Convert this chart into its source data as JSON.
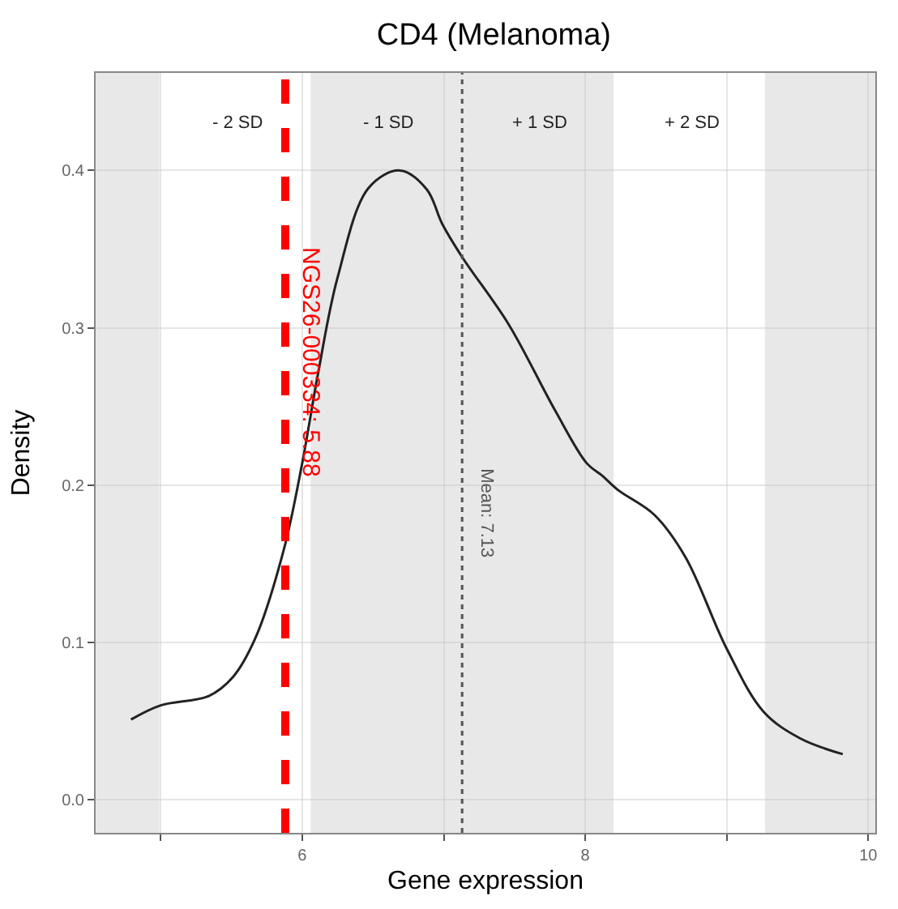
{
  "chart_data": {
    "type": "line",
    "title": "CD4 (Melanoma)",
    "xlabel": "Gene expression",
    "ylabel": "Density",
    "x": [
      4.79,
      5.0,
      5.34,
      5.51,
      5.67,
      5.87,
      6.0,
      6.11,
      6.25,
      6.47,
      6.69,
      6.88,
      6.99,
      7.13,
      7.46,
      7.79,
      8.01,
      8.12,
      8.23,
      8.49,
      8.71,
      9.0,
      9.26,
      9.52,
      9.82
    ],
    "series": [
      {
        "color": "#222222",
        "values": [
          0.051,
          0.06,
          0.066,
          0.078,
          0.103,
          0.159,
          0.214,
          0.27,
          0.332,
          0.389,
          0.4,
          0.388,
          0.366,
          0.345,
          0.302,
          0.247,
          0.214,
          0.206,
          0.197,
          0.181,
          0.154,
          0.096,
          0.056,
          0.039,
          0.029
        ]
      }
    ],
    "xlim": [
      4.54,
      10.05
    ],
    "ylim": [
      -0.021,
      0.462
    ],
    "xticks": [
      {
        "value": 5,
        "label": null
      },
      6,
      {
        "value": 7,
        "label": null
      },
      8,
      {
        "value": 9,
        "label": null
      },
      10
    ],
    "yticks": [
      {
        "value": 0,
        "label": "0.0"
      },
      0.1,
      0.2,
      0.3,
      0.4
    ],
    "ref_lines": [
      {
        "axis": "x",
        "value": 5.88,
        "label": "NGS26-000334: 5.88",
        "color": "#ff0000",
        "line_style": "dashed"
      },
      {
        "axis": "x",
        "value": 7.13,
        "label": "Mean: 7.13",
        "color": "#555555",
        "line_style": "dotted"
      }
    ],
    "bands": [
      {
        "axis": "x",
        "from": 4.54,
        "to": 4.99,
        "color": "#e8e8e8"
      },
      {
        "axis": "x",
        "from": 6.06,
        "to": 8.2,
        "color": "#e8e8e8"
      },
      {
        "axis": "x",
        "from": 9.27,
        "to": 10.05,
        "color": "#e8e8e8"
      }
    ],
    "annotations": [
      "- 2 SD",
      "- 1 SD",
      "+ 1 SD",
      "+ 2 SD"
    ],
    "grid": true,
    "legend": false,
    "marker": "none",
    "line_style": "solid"
  }
}
